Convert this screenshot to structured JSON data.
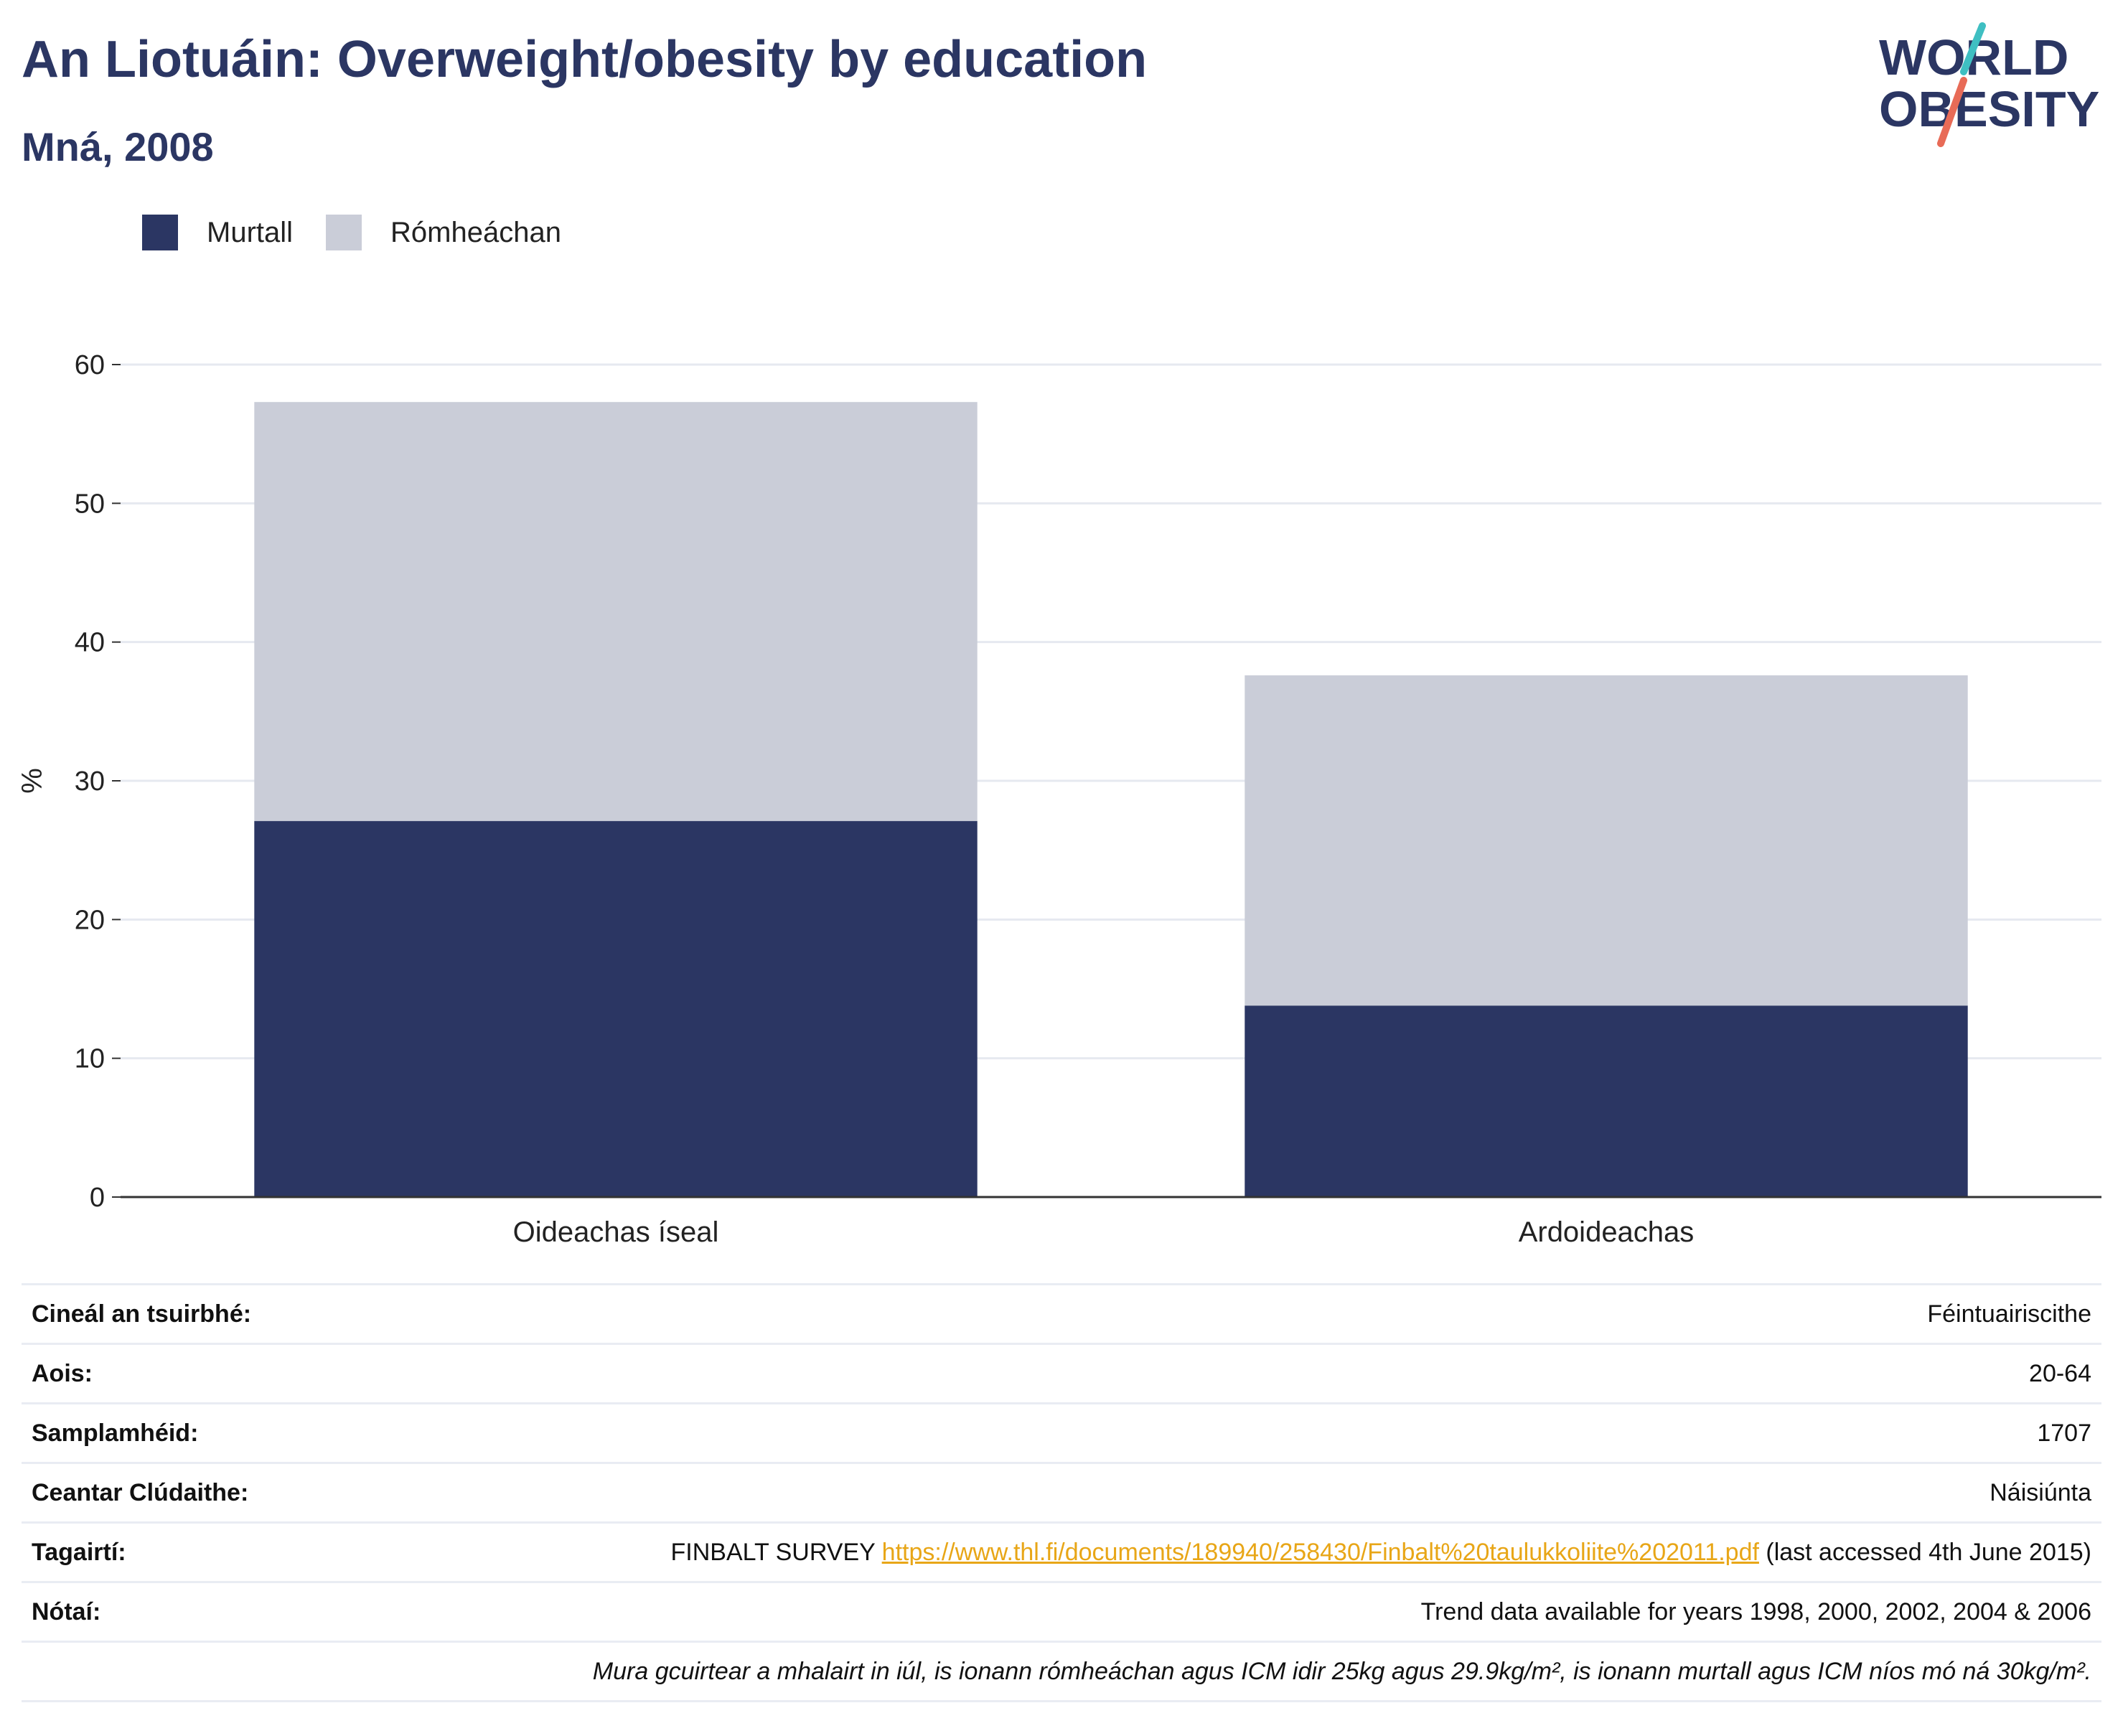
{
  "header": {
    "title": "An Liotuáin: Overweight/obesity by education",
    "subtitle": "Mná, 2008",
    "logo": {
      "line1": "WORLD",
      "line2": "OBESITY",
      "colors": {
        "text": "#2b3663",
        "slash_teal": "#3fbfc2",
        "slash_red": "#e86b57"
      }
    }
  },
  "colors": {
    "obese": "#2b3663",
    "overweight": "#cacdd8",
    "grid": "#e6e9f0",
    "axis": "#333333"
  },
  "chart_data": {
    "type": "bar",
    "stacked": true,
    "categories": [
      "Oideachas íseal",
      "Ardoideachas"
    ],
    "series": [
      {
        "name": "Murtall",
        "values": [
          27.1,
          13.8
        ]
      },
      {
        "name": "Rómheáchan",
        "values": [
          30.2,
          23.8
        ]
      }
    ],
    "ylabel": "%",
    "xlabel": "",
    "ylim": [
      0,
      60
    ],
    "yticks": [
      0,
      10,
      20,
      30,
      40,
      50,
      60
    ],
    "grid": true,
    "legend": "top-left"
  },
  "info": {
    "rows": [
      {
        "key": "Cineál an tsuirbhé:",
        "value": "Féintuairiscithe"
      },
      {
        "key": "Aois:",
        "value": "20-64"
      },
      {
        "key": "Samplamhéid:",
        "value": "1707"
      },
      {
        "key": "Ceantar Clúdaithe:",
        "value": "Náisiúnta"
      }
    ],
    "references": {
      "key": "Tagairtí:",
      "prefix": "FINBALT SURVEY ",
      "link": "https://www.thl.fi/documents/189940/258430/Finbalt%20taulukkoliite%202011.pdf",
      "suffix": " (last accessed 4th June 2015)"
    },
    "notes": {
      "key": "Nótaí:",
      "value": "Trend data available for years 1998, 2000, 2002, 2004 & 2006"
    },
    "footnote": "Mura gcuirtear a mhalairt in iúl, is ionann rómheáchan agus ICM idir 25kg agus 29.9kg/m², is ionann murtall agus ICM níos mó ná 30kg/m²."
  }
}
